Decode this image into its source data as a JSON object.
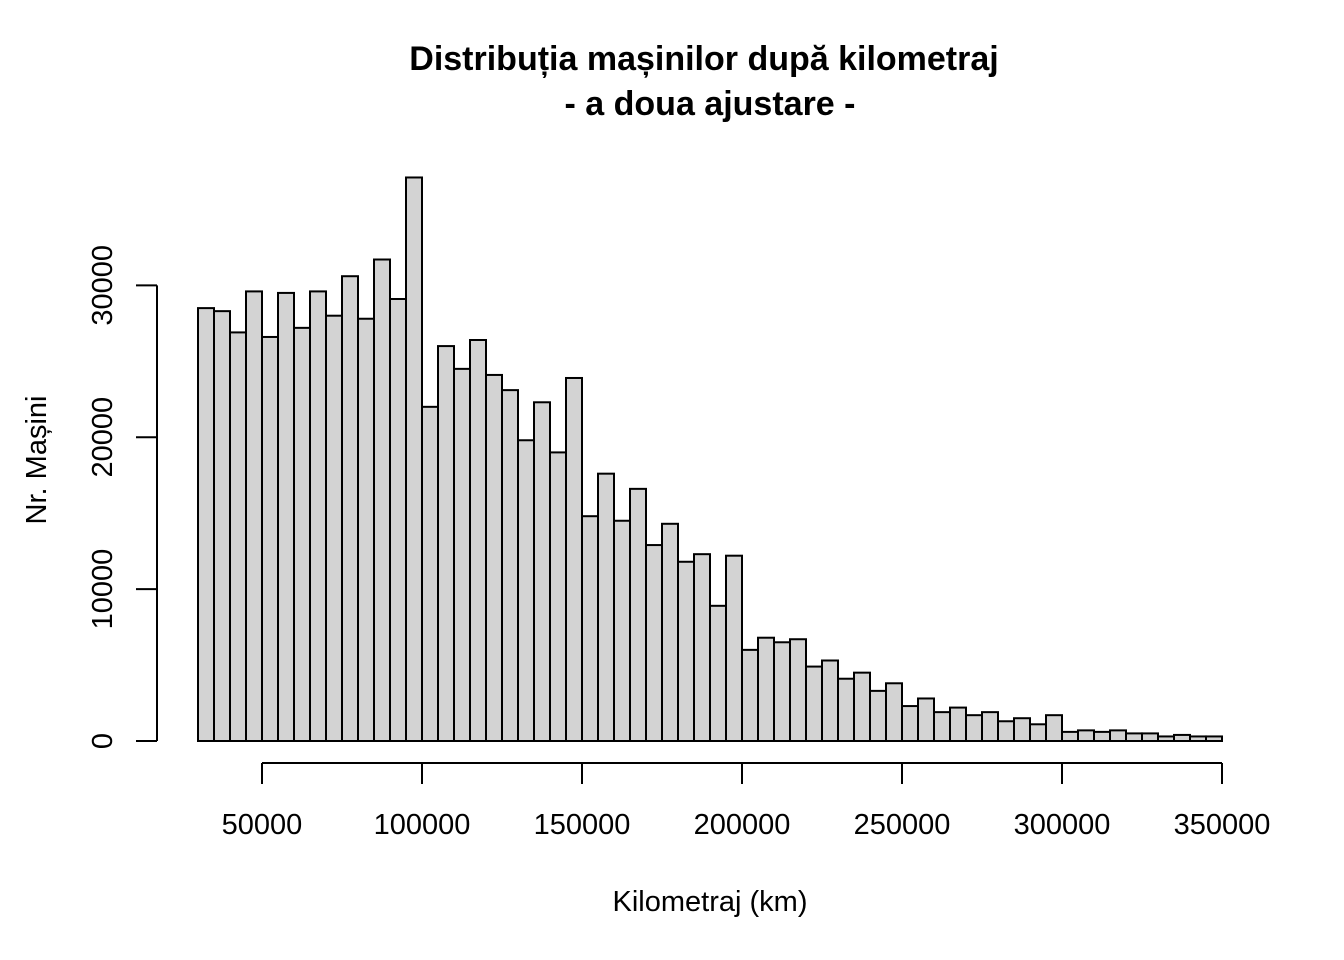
{
  "chart_data": {
    "type": "bar",
    "title": "Distribuția mașinilor după kilometraj",
    "subtitle": "- a doua ajustare -",
    "xlabel": "Kilometraj (km)",
    "ylabel": "Nr. Mașini",
    "bin_width": 5000,
    "x_start": 30000,
    "xlim": [
      30000,
      350000
    ],
    "ylim": [
      0,
      37000
    ],
    "x_ticks": [
      50000,
      100000,
      150000,
      200000,
      250000,
      300000,
      350000
    ],
    "x_tick_labels": [
      "50000",
      "100000",
      "150000",
      "200000",
      "250000",
      "300000",
      "350000"
    ],
    "y_ticks": [
      0,
      10000,
      20000,
      30000
    ],
    "y_tick_labels": [
      "0",
      "10000",
      "20000",
      "30000"
    ],
    "values": [
      28500,
      28300,
      26900,
      29600,
      26600,
      29500,
      27200,
      29600,
      28000,
      30600,
      27800,
      31700,
      29100,
      37100,
      22000,
      26000,
      24500,
      26400,
      24100,
      23100,
      19800,
      22300,
      19000,
      23900,
      14800,
      17600,
      14500,
      16600,
      12900,
      14300,
      11800,
      12300,
      8900,
      12200,
      6000,
      6800,
      6500,
      6700,
      4900,
      5300,
      4100,
      4500,
      3300,
      3800,
      2300,
      2800,
      1900,
      2200,
      1700,
      1900,
      1300,
      1500,
      1100,
      1700,
      600,
      700,
      600,
      700,
      500,
      500,
      300,
      400,
      300,
      300
    ],
    "colors": {
      "bar_fill": "#d3d3d3",
      "bar_stroke": "#000000"
    }
  }
}
